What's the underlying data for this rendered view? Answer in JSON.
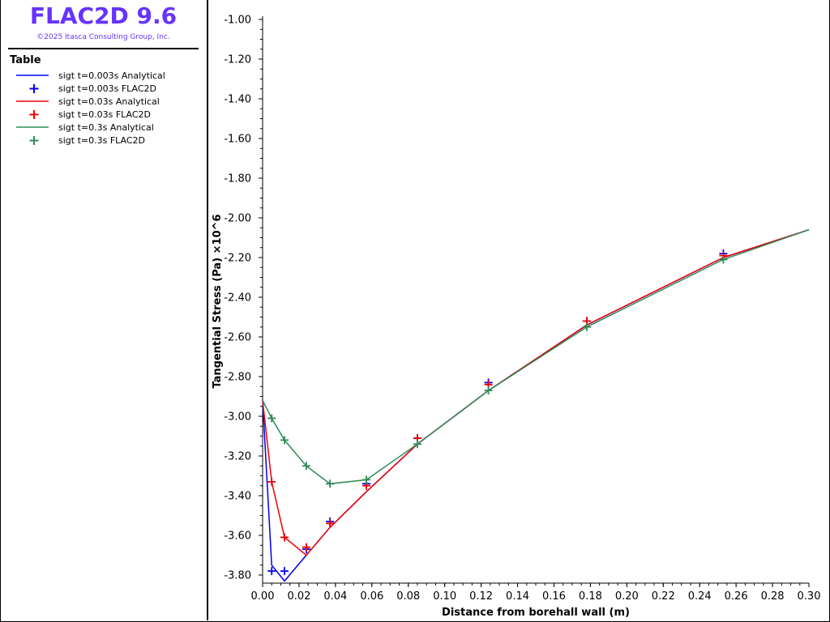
{
  "app": {
    "title": "FLAC2D 9.6",
    "copyright": "©2025 Itasca Consulting Group, Inc."
  },
  "legend": {
    "title": "Table",
    "items": [
      {
        "label": "sigt t=0.003s Analytical",
        "kind": "line",
        "color": "#0000ee"
      },
      {
        "label": "sigt t=0.003s FLAC2D",
        "kind": "marker",
        "color": "#0000ee"
      },
      {
        "label": "sigt t=0.03s Analytical",
        "kind": "line",
        "color": "#ee0000"
      },
      {
        "label": "sigt t=0.03s FLAC2D",
        "kind": "marker",
        "color": "#ee0000"
      },
      {
        "label": "sigt t=0.3s Analytical",
        "kind": "line",
        "color": "#2e8b57"
      },
      {
        "label": "sigt t=0.3s FLAC2D",
        "kind": "marker",
        "color": "#2e8b57"
      }
    ]
  },
  "chart_data": {
    "type": "line",
    "xlabel": "Distance from borehall wall (m)",
    "ylabel": "Tangential Stress (Pa) ×10^6",
    "xlim": [
      0,
      0.3
    ],
    "ylim": [
      -3.85,
      -1.0
    ],
    "xticks": [
      "0.00",
      "0.02",
      "0.04",
      "0.06",
      "0.08",
      "0.10",
      "0.12",
      "0.14",
      "0.16",
      "0.18",
      "0.20",
      "0.22",
      "0.24",
      "0.26",
      "0.28",
      "0.30"
    ],
    "xtick_values": [
      0,
      0.02,
      0.04,
      0.06,
      0.08,
      0.1,
      0.12,
      0.14,
      0.16,
      0.18,
      0.2,
      0.22,
      0.24,
      0.26,
      0.28,
      0.3
    ],
    "yticks": [
      "-1.00",
      "-1.20",
      "-1.40",
      "-1.60",
      "-1.80",
      "-2.00",
      "-2.20",
      "-2.40",
      "-2.60",
      "-2.80",
      "-3.00",
      "-3.20",
      "-3.40",
      "-3.60",
      "-3.80"
    ],
    "ytick_values": [
      -1.0,
      -1.2,
      -1.4,
      -1.6,
      -1.8,
      -2.0,
      -2.2,
      -2.4,
      -2.6,
      -2.8,
      -3.0,
      -3.2,
      -3.4,
      -3.6,
      -3.8
    ],
    "grid": false,
    "series": [
      {
        "name": "sigt t=0.003s Analytical",
        "kind": "line",
        "color": "#0000ee",
        "x": [
          0,
          0.005,
          0.012,
          0.024,
          0.037,
          0.057,
          0.085,
          0.124,
          0.178,
          0.253,
          0.3
        ],
        "y": [
          -2.92,
          -3.75,
          -3.83,
          -3.7,
          -3.56,
          -3.38,
          -3.14,
          -2.87,
          -2.54,
          -2.2,
          -2.06
        ]
      },
      {
        "name": "sigt t=0.003s FLAC2D",
        "kind": "marker",
        "color": "#0000ee",
        "x": [
          0.005,
          0.012,
          0.024,
          0.037,
          0.057,
          0.085,
          0.124,
          0.178,
          0.253
        ],
        "y": [
          -3.78,
          -3.78,
          -3.67,
          -3.53,
          -3.34,
          -3.11,
          -2.83,
          -2.52,
          -2.18
        ]
      },
      {
        "name": "sigt t=0.03s Analytical",
        "kind": "line",
        "color": "#ee0000",
        "x": [
          0,
          0.005,
          0.012,
          0.024,
          0.037,
          0.057,
          0.085,
          0.124,
          0.178,
          0.253,
          0.3
        ],
        "y": [
          -2.92,
          -3.33,
          -3.61,
          -3.7,
          -3.56,
          -3.38,
          -3.14,
          -2.87,
          -2.54,
          -2.2,
          -2.06
        ]
      },
      {
        "name": "sigt t=0.03s FLAC2D",
        "kind": "marker",
        "color": "#ee0000",
        "x": [
          0.005,
          0.012,
          0.024,
          0.037,
          0.057,
          0.085,
          0.124,
          0.178,
          0.253
        ],
        "y": [
          -3.33,
          -3.61,
          -3.66,
          -3.54,
          -3.35,
          -3.11,
          -2.84,
          -2.52,
          -2.19
        ]
      },
      {
        "name": "sigt t=0.3s Analytical",
        "kind": "line",
        "color": "#2e8b57",
        "x": [
          0,
          0.005,
          0.012,
          0.024,
          0.037,
          0.057,
          0.085,
          0.124,
          0.178,
          0.253,
          0.3
        ],
        "y": [
          -2.92,
          -3.01,
          -3.12,
          -3.25,
          -3.34,
          -3.32,
          -3.14,
          -2.87,
          -2.55,
          -2.21,
          -2.06
        ]
      },
      {
        "name": "sigt t=0.3s FLAC2D",
        "kind": "marker",
        "color": "#2e8b57",
        "x": [
          0.005,
          0.012,
          0.024,
          0.037,
          0.057,
          0.085,
          0.124,
          0.178,
          0.253
        ],
        "y": [
          -3.01,
          -3.12,
          -3.25,
          -3.34,
          -3.32,
          -3.14,
          -2.87,
          -2.55,
          -2.21
        ]
      }
    ]
  }
}
